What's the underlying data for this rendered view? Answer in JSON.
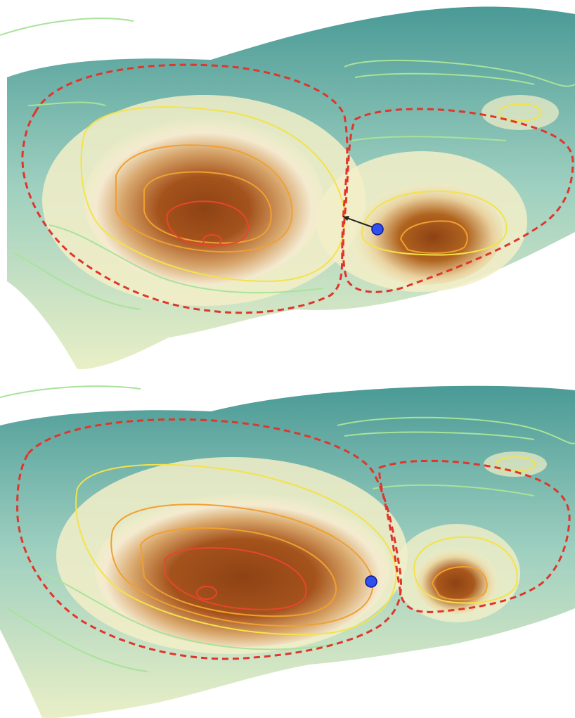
{
  "figure": {
    "panels": [
      {
        "id": "top",
        "description_hidden": true
      },
      {
        "id": "bottom",
        "description_hidden": true
      }
    ],
    "colors": {
      "surface_low": "#3f8f8f",
      "surface_mid": "#bfe3d2",
      "surface_pale": "#f6f2c9",
      "surface_high": "#9a4a16",
      "contour_green": "#a8e39a",
      "contour_yellow": "#f4e24a",
      "contour_orange": "#f0a030",
      "contour_red": "#e8452c",
      "boundary_dashed": "#e0352b",
      "point_blue": "#2f4ff0",
      "point_outline": "#0a1a8a",
      "arrow": "#222222"
    },
    "icons": {
      "point": "blue-dot-icon",
      "arrow": "arrow-icon"
    }
  }
}
